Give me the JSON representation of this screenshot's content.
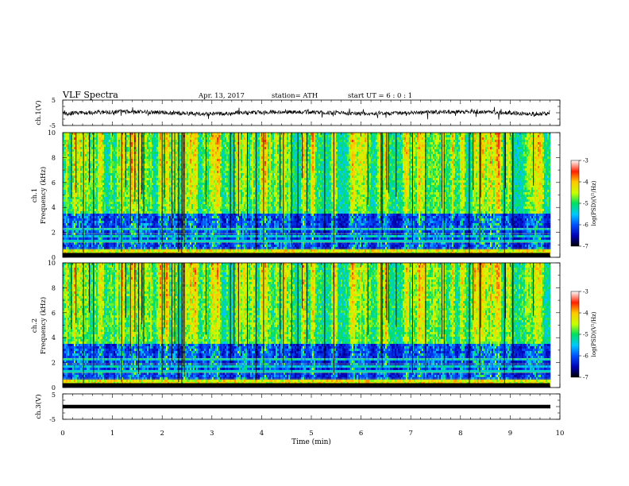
{
  "header": {
    "title": "VLF  Spectra",
    "date": "Apr. 13, 2017",
    "station": "station= ATH",
    "start": "start  UT  =    6  : 0   : 1"
  },
  "chart_data": [
    {
      "type": "line",
      "panel": "waveform-ch1",
      "ylabel": "ch.1(V)",
      "yticks": [
        "5",
        "-5"
      ],
      "ylim": [
        -5,
        5
      ],
      "xlim": [
        0,
        10
      ]
    },
    {
      "type": "heatmap",
      "panel": "spectrogram-ch1",
      "ylabel": "ch.1\nFrequency  (kHz)",
      "ylabel_lines": [
        "ch.1",
        "Frequency  (kHz)"
      ],
      "yticks": [
        "0",
        "2",
        "4",
        "6",
        "8",
        "10"
      ],
      "ylim": [
        0,
        10
      ],
      "xlim": [
        0,
        10
      ],
      "data_span_min": [
        0,
        9.8
      ],
      "colorbar": {
        "label": "log(PSD)(V²/Hz)",
        "ticks": [
          "-3",
          "-4",
          "-5",
          "-6",
          "-7"
        ],
        "range": [
          -7,
          -3
        ]
      }
    },
    {
      "type": "heatmap",
      "panel": "spectrogram-ch2",
      "ylabel": "ch.2\nFrequency  (kHz)",
      "ylabel_lines": [
        "ch.2",
        "Frequency  (kHz)"
      ],
      "yticks": [
        "0",
        "2",
        "4",
        "6",
        "8",
        "10"
      ],
      "ylim": [
        0,
        10
      ],
      "xlim": [
        0,
        10
      ],
      "data_span_min": [
        0,
        9.8
      ],
      "colorbar": {
        "label": "log(PSD)(V²/Hz)",
        "ticks": [
          "-3",
          "-4",
          "-5",
          "-6",
          "-7"
        ],
        "range": [
          -7,
          -3
        ]
      }
    },
    {
      "type": "line",
      "panel": "waveform-ch3",
      "ylabel": "ch.3(V)",
      "yticks": [
        "5",
        "-5"
      ],
      "ylim": [
        -5,
        5
      ],
      "xlim": [
        0,
        10
      ]
    }
  ],
  "xaxis": {
    "label": "Time  (min)",
    "ticks": [
      "0",
      "1",
      "2",
      "3",
      "4",
      "5",
      "6",
      "7",
      "8",
      "9",
      "10"
    ]
  },
  "colors": {
    "colormap": [
      "#000000",
      "#0000b4",
      "#0050ff",
      "#00c8ff",
      "#00e060",
      "#c8ff00",
      "#ffc800",
      "#ff2000",
      "#ffffff"
    ]
  }
}
